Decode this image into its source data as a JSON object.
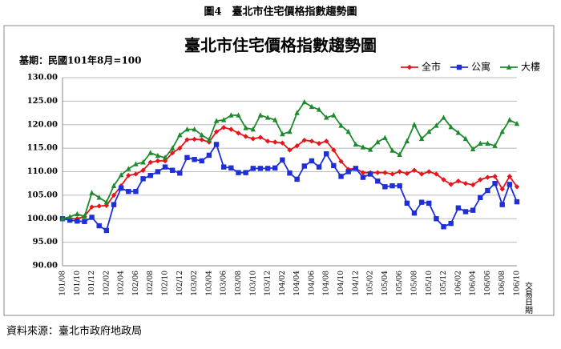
{
  "heading": "圖4　臺北市住宅價格指數趨勢圖",
  "source": "資料來源：臺北市政府地政局",
  "chart_data": {
    "type": "line",
    "title": "臺北市住宅價格指數趨勢圖",
    "subtitle": "基期：民國101年8月=100",
    "x_label": "交易日期",
    "categories": [
      "101/08",
      null,
      "101/10",
      null,
      "101/12",
      null,
      "102/02",
      null,
      "102/04",
      null,
      "102/06",
      null,
      "102/08",
      null,
      "102/10",
      null,
      "102/12",
      null,
      "103/02",
      null,
      "103/04",
      null,
      "103/06",
      null,
      "103/08",
      null,
      "103/10",
      null,
      "103/12",
      null,
      "104/02",
      null,
      "104/04",
      null,
      "104/06",
      null,
      "104/08",
      null,
      "104/10",
      null,
      "104/12",
      null,
      "105/02",
      null,
      "105/04",
      null,
      "105/06",
      null,
      "105/08",
      null,
      "105/10",
      null,
      "105/12",
      null,
      "106/02",
      null,
      "106/04",
      null,
      "106/06",
      null,
      "106/08",
      null,
      "106/10"
    ],
    "series": [
      {
        "name": "全市",
        "color": "#e8141c",
        "marker": "diamond",
        "values": [
          100,
          100,
          100,
          100.5,
          102.5,
          102.7,
          102.8,
          105,
          107,
          109.2,
          109.5,
          110.3,
          112,
          112.3,
          112.3,
          114,
          115,
          116.8,
          116.9,
          116.8,
          116.3,
          118.5,
          119.4,
          119,
          118.2,
          117.5,
          117,
          117.3,
          116.5,
          116.3,
          116.1,
          114.6,
          115.5,
          116.7,
          116.5,
          116,
          116.5,
          114.6,
          112.2,
          110.5,
          110.7,
          109.8,
          109.8,
          109.8,
          109.8,
          109.5,
          110,
          109.6,
          110.3,
          109.5,
          110,
          109.5,
          108.3,
          107.3,
          108,
          107.5,
          107.2,
          108.3,
          108.8,
          109,
          106.3,
          109,
          106.8
        ]
      },
      {
        "name": "公寓",
        "color": "#1f2fd8",
        "marker": "square",
        "values": [
          100,
          99.7,
          99.5,
          99.4,
          100.3,
          98.5,
          97.5,
          103,
          106.5,
          105.8,
          105.8,
          108.5,
          109.2,
          110,
          111,
          110.3,
          109.7,
          113,
          112.6,
          112.3,
          113.5,
          115.8,
          111,
          110.8,
          109.8,
          109.8,
          110.7,
          110.7,
          110.7,
          110.8,
          112.5,
          109.7,
          108.4,
          111.2,
          112.3,
          111,
          113.8,
          111.3,
          109,
          110,
          110.7,
          108.8,
          109.5,
          108,
          106.8,
          107,
          107,
          103.3,
          101.2,
          103.5,
          103.3,
          100,
          98.3,
          99,
          102.3,
          101.5,
          101.8,
          104.5,
          106,
          107.5,
          103,
          107.3,
          103.6
        ]
      },
      {
        "name": "大樓",
        "color": "#1e8a2e",
        "marker": "triangle",
        "values": [
          100,
          100.4,
          101,
          100.5,
          105.5,
          104.5,
          103.5,
          107,
          109.3,
          110.6,
          111.6,
          112,
          114,
          113.4,
          113,
          115,
          117.8,
          119,
          119,
          117.8,
          116.8,
          120.8,
          121,
          122,
          122,
          119.3,
          119,
          122,
          121.5,
          121,
          118,
          118.5,
          122.5,
          124.8,
          123.8,
          123.2,
          121.5,
          122,
          119.8,
          118.5,
          115.8,
          115.2,
          114.7,
          116.3,
          117.2,
          114.5,
          113.6,
          116.5,
          120,
          117,
          118.5,
          119.8,
          121.5,
          119.5,
          118.3,
          117,
          114.8,
          116,
          116,
          115.5,
          118.5,
          121,
          120.2
        ]
      }
    ],
    "ylim": [
      90,
      130
    ],
    "yticks": [
      {
        "value": 90,
        "label": "90.00"
      },
      {
        "value": 95,
        "label": "95.00"
      },
      {
        "value": 100,
        "label": "100.00"
      },
      {
        "value": 105,
        "label": "105.00"
      },
      {
        "value": 110,
        "label": "110.00"
      },
      {
        "value": 115,
        "label": "115.00"
      },
      {
        "value": 120,
        "label": "120.00"
      },
      {
        "value": 125,
        "label": "125.00"
      },
      {
        "value": 130,
        "label": "130.00"
      }
    ],
    "grid": true,
    "legend": "top-right"
  }
}
